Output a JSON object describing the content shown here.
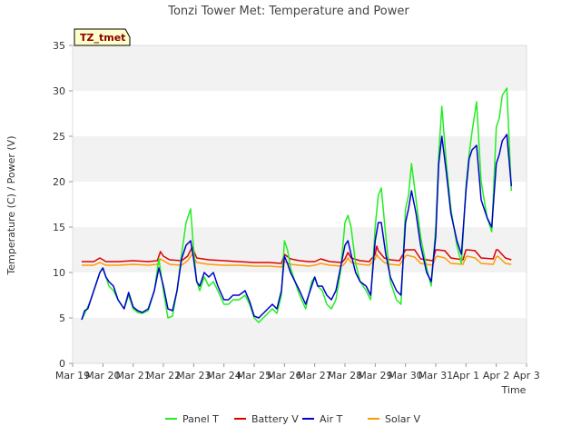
{
  "chart_data": {
    "type": "line",
    "title": "Tonzi Tower Met: Temperature and Power",
    "xlabel": "Time",
    "ylabel": "Temperature (C) / Power (V)",
    "ylim": [
      0,
      35
    ],
    "yticks": [
      0,
      5,
      10,
      15,
      20,
      25,
      30,
      35
    ],
    "xlim": [
      0,
      15
    ],
    "xticks": [
      {
        "v": 0,
        "label": "Mar 19"
      },
      {
        "v": 1,
        "label": "Mar 20"
      },
      {
        "v": 2,
        "label": "Mar 21"
      },
      {
        "v": 3,
        "label": "Mar 22"
      },
      {
        "v": 4,
        "label": "Mar 23"
      },
      {
        "v": 5,
        "label": "Mar 24"
      },
      {
        "v": 6,
        "label": "Mar 25"
      },
      {
        "v": 7,
        "label": "Mar 26"
      },
      {
        "v": 8,
        "label": "Mar 27"
      },
      {
        "v": 9,
        "label": "Mar 28"
      },
      {
        "v": 10,
        "label": "Mar 29"
      },
      {
        "v": 11,
        "label": "Mar 30"
      },
      {
        "v": 12,
        "label": "Mar 31"
      },
      {
        "v": 13,
        "label": "Apr 1"
      },
      {
        "v": 14,
        "label": "Apr 2"
      },
      {
        "v": 15,
        "label": "Apr 3"
      }
    ],
    "grid": "horizontal bands",
    "legend_position": "bottom",
    "tag": "TZ_tmet",
    "series": [
      {
        "name": "Panel T",
        "color": "#22ee22",
        "x": [
          0.3,
          0.4,
          0.5,
          0.6,
          0.75,
          0.9,
          1.0,
          1.1,
          1.2,
          1.35,
          1.5,
          1.7,
          1.85,
          2.0,
          2.15,
          2.3,
          2.5,
          2.7,
          2.85,
          3.0,
          3.15,
          3.3,
          3.45,
          3.6,
          3.75,
          3.9,
          4.0,
          4.1,
          4.2,
          4.35,
          4.5,
          4.65,
          4.8,
          5.0,
          5.15,
          5.3,
          5.5,
          5.7,
          5.85,
          6.0,
          6.15,
          6.3,
          6.45,
          6.6,
          6.75,
          6.9,
          7.0,
          7.1,
          7.2,
          7.35,
          7.5,
          7.7,
          7.9,
          8.0,
          8.1,
          8.25,
          8.4,
          8.55,
          8.7,
          8.85,
          9.0,
          9.1,
          9.2,
          9.35,
          9.5,
          9.7,
          9.85,
          10.0,
          10.1,
          10.2,
          10.35,
          10.5,
          10.7,
          10.85,
          11.0,
          11.1,
          11.2,
          11.35,
          11.5,
          11.7,
          11.85,
          12.0,
          12.1,
          12.2,
          12.35,
          12.5,
          12.7,
          12.85,
          13.0,
          13.1,
          13.2,
          13.35,
          13.5,
          13.7,
          13.85,
          14.0,
          14.1,
          14.2,
          14.35,
          14.5
        ],
        "y": [
          4.8,
          5.5,
          6.2,
          7.0,
          8.5,
          10.0,
          10.5,
          9.5,
          8.5,
          8.0,
          7.0,
          6.0,
          7.5,
          6.0,
          5.6,
          5.5,
          5.8,
          8.0,
          11.5,
          8.0,
          5.0,
          5.2,
          8.0,
          12.0,
          15.5,
          17.0,
          12.5,
          9.0,
          8.0,
          9.5,
          8.5,
          9.0,
          8.0,
          6.5,
          6.5,
          7.0,
          7.0,
          7.5,
          6.5,
          5.0,
          4.5,
          5.0,
          5.5,
          6.0,
          5.5,
          7.5,
          13.5,
          12.5,
          10.5,
          9.0,
          7.5,
          6.0,
          9.0,
          9.5,
          8.5,
          8.0,
          6.5,
          6.0,
          7.0,
          10.0,
          15.5,
          16.3,
          15.0,
          11.0,
          9.0,
          8.0,
          7.0,
          15.0,
          18.5,
          19.3,
          14.0,
          9.0,
          7.0,
          6.5,
          17.0,
          18.5,
          22.0,
          18.0,
          14.0,
          10.5,
          8.5,
          15.0,
          23.0,
          28.3,
          22.0,
          17.0,
          13.0,
          11.0,
          19.5,
          23.0,
          25.5,
          28.8,
          20.0,
          16.0,
          14.5,
          26.0,
          27.0,
          29.5,
          30.3,
          19.0
        ]
      },
      {
        "name": "Battery V",
        "color": "#dd0000",
        "x": [
          0.3,
          0.7,
          0.9,
          1.1,
          1.5,
          2.0,
          2.5,
          2.8,
          2.9,
          3.0,
          3.2,
          3.6,
          3.8,
          3.95,
          4.1,
          4.5,
          5.0,
          5.5,
          6.0,
          6.5,
          6.9,
          7.0,
          7.2,
          7.5,
          7.8,
          8.0,
          8.2,
          8.5,
          8.9,
          9.0,
          9.1,
          9.2,
          9.5,
          9.8,
          10.0,
          10.05,
          10.1,
          10.3,
          10.5,
          10.8,
          11.0,
          11.05,
          11.3,
          11.5,
          11.9,
          12.0,
          12.05,
          12.3,
          12.5,
          12.9,
          13.0,
          13.05,
          13.3,
          13.5,
          13.9,
          14.0,
          14.05,
          14.3,
          14.5
        ],
        "y": [
          11.2,
          11.2,
          11.6,
          11.2,
          11.2,
          11.3,
          11.2,
          11.3,
          12.3,
          11.8,
          11.4,
          11.3,
          11.8,
          12.8,
          11.6,
          11.4,
          11.3,
          11.2,
          11.1,
          11.1,
          11.0,
          12.0,
          11.5,
          11.3,
          11.2,
          11.2,
          11.5,
          11.2,
          11.1,
          11.5,
          12.2,
          11.6,
          11.3,
          11.2,
          12.0,
          12.9,
          12.4,
          11.6,
          11.4,
          11.3,
          12.5,
          12.5,
          12.5,
          11.5,
          11.3,
          12.5,
          12.5,
          12.4,
          11.6,
          11.4,
          12.5,
          12.5,
          12.4,
          11.6,
          11.5,
          12.5,
          12.5,
          11.6,
          11.4
        ]
      },
      {
        "name": "Air T",
        "color": "#0000cc",
        "x": [
          0.3,
          0.4,
          0.5,
          0.6,
          0.75,
          0.9,
          1.0,
          1.1,
          1.2,
          1.35,
          1.5,
          1.7,
          1.85,
          2.0,
          2.15,
          2.3,
          2.5,
          2.7,
          2.85,
          3.0,
          3.15,
          3.3,
          3.45,
          3.6,
          3.75,
          3.9,
          4.0,
          4.1,
          4.2,
          4.35,
          4.5,
          4.65,
          4.8,
          5.0,
          5.15,
          5.3,
          5.5,
          5.7,
          5.85,
          6.0,
          6.15,
          6.3,
          6.45,
          6.6,
          6.75,
          6.9,
          7.0,
          7.1,
          7.2,
          7.35,
          7.5,
          7.7,
          7.9,
          8.0,
          8.1,
          8.25,
          8.4,
          8.55,
          8.7,
          8.85,
          9.0,
          9.1,
          9.2,
          9.35,
          9.5,
          9.7,
          9.85,
          10.0,
          10.1,
          10.2,
          10.35,
          10.5,
          10.7,
          10.85,
          11.0,
          11.1,
          11.2,
          11.35,
          11.5,
          11.7,
          11.85,
          12.0,
          12.1,
          12.2,
          12.35,
          12.5,
          12.7,
          12.85,
          13.0,
          13.1,
          13.2,
          13.35,
          13.5,
          13.7,
          13.85,
          14.0,
          14.1,
          14.2,
          14.35,
          14.5
        ],
        "y": [
          4.8,
          5.8,
          6.0,
          7.0,
          8.5,
          10.0,
          10.5,
          9.5,
          9.0,
          8.5,
          7.0,
          6.0,
          7.8,
          6.2,
          5.8,
          5.6,
          6.0,
          8.0,
          10.5,
          8.5,
          6.0,
          5.8,
          8.0,
          11.5,
          13.0,
          13.5,
          11.5,
          9.0,
          8.5,
          10.0,
          9.5,
          10.0,
          8.5,
          7.0,
          7.0,
          7.5,
          7.5,
          8.0,
          6.8,
          5.2,
          5.0,
          5.5,
          6.0,
          6.5,
          6.0,
          8.0,
          11.8,
          11.0,
          10.0,
          9.0,
          8.0,
          6.5,
          8.5,
          9.5,
          8.5,
          8.5,
          7.5,
          7.0,
          8.0,
          10.5,
          13.0,
          13.5,
          12.0,
          10.0,
          9.0,
          8.5,
          7.5,
          13.5,
          15.5,
          15.5,
          12.0,
          9.5,
          8.0,
          7.5,
          15.5,
          17.0,
          19.0,
          16.5,
          13.0,
          10.0,
          9.0,
          14.0,
          22.0,
          25.0,
          21.0,
          16.5,
          13.5,
          12.0,
          19.0,
          22.5,
          23.5,
          24.0,
          18.0,
          16.0,
          15.0,
          22.0,
          23.0,
          24.5,
          25.2,
          19.5
        ]
      },
      {
        "name": "Solar V",
        "color": "#ff9900",
        "x": [
          0.3,
          0.7,
          0.9,
          1.1,
          1.5,
          2.0,
          2.5,
          2.8,
          2.9,
          3.0,
          3.2,
          3.6,
          3.8,
          3.95,
          4.1,
          4.5,
          5.0,
          5.5,
          6.0,
          6.5,
          6.9,
          7.0,
          7.2,
          7.5,
          7.8,
          8.0,
          8.2,
          8.5,
          8.9,
          9.0,
          9.1,
          9.2,
          9.5,
          9.8,
          10.0,
          10.05,
          10.1,
          10.3,
          10.5,
          10.8,
          11.0,
          11.05,
          11.3,
          11.5,
          11.9,
          12.0,
          12.05,
          12.3,
          12.5,
          12.9,
          13.0,
          13.05,
          13.3,
          13.5,
          13.9,
          14.0,
          14.05,
          14.3,
          14.5
        ],
        "y": [
          10.8,
          10.8,
          11.1,
          10.8,
          10.8,
          10.9,
          10.8,
          10.9,
          11.5,
          11.3,
          10.9,
          10.8,
          11.3,
          12.0,
          11.1,
          10.9,
          10.8,
          10.8,
          10.7,
          10.7,
          10.6,
          11.2,
          10.9,
          10.8,
          10.7,
          10.8,
          11.0,
          10.8,
          10.7,
          11.0,
          11.6,
          11.1,
          10.9,
          10.8,
          11.5,
          12.0,
          11.7,
          11.1,
          10.9,
          10.8,
          11.8,
          11.9,
          11.7,
          11.0,
          10.8,
          11.7,
          11.8,
          11.6,
          11.0,
          10.9,
          11.7,
          11.8,
          11.6,
          11.0,
          10.9,
          11.7,
          11.8,
          11.0,
          10.9
        ]
      }
    ]
  }
}
